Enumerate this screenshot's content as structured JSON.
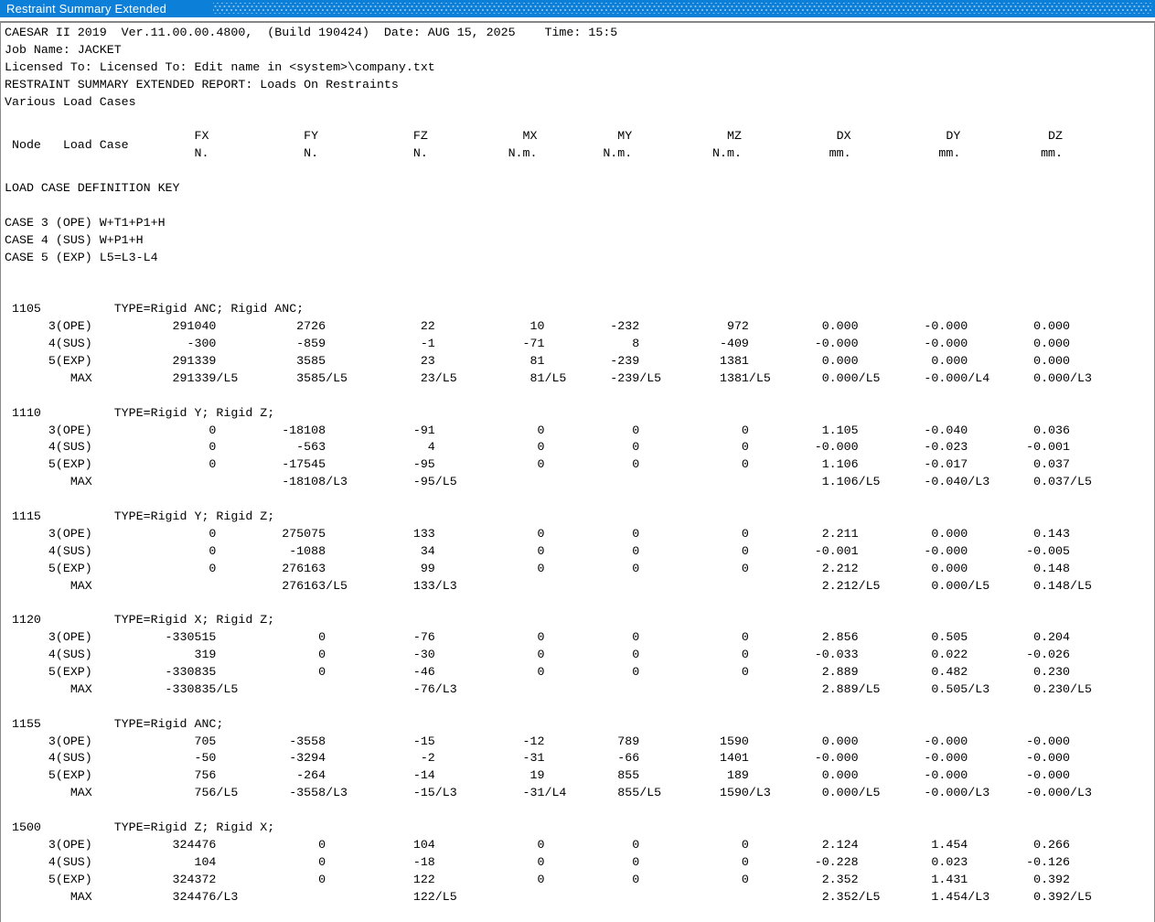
{
  "window": {
    "title": "Restraint Summary Extended",
    "titlebar_color": "#0c80d9"
  },
  "report": {
    "header_lines": [
      "CAESAR II 2019  Ver.11.00.00.4800,  (Build 190424)  Date: AUG 15, 2025    Time: 15:5",
      "Job Name: JACKET",
      "Licensed To: Licensed To: Edit name in <system>\\company.txt",
      "RESTRAINT SUMMARY EXTENDED REPORT: Loads On Restraints",
      "Various Load Cases"
    ],
    "table_header": {
      "node_label": "Node",
      "load_case_label": "Load Case",
      "columns": [
        {
          "label": "FX",
          "unit": "N."
        },
        {
          "label": "FY",
          "unit": "N."
        },
        {
          "label": "FZ",
          "unit": "N."
        },
        {
          "label": "MX",
          "unit": "N.m."
        },
        {
          "label": "MY",
          "unit": "N.m."
        },
        {
          "label": "MZ",
          "unit": "N.m."
        },
        {
          "label": "DX",
          "unit": "mm."
        },
        {
          "label": "DY",
          "unit": "mm."
        },
        {
          "label": "DZ",
          "unit": "mm."
        }
      ]
    },
    "load_case_key": {
      "title": "LOAD CASE DEFINITION KEY",
      "cases": [
        "CASE 3 (OPE) W+T1+P1+H",
        "CASE 4 (SUS) W+P1+H",
        "CASE 5 (EXP) L5=L3-L4"
      ]
    },
    "nodes": [
      {
        "node": "1105",
        "type": "TYPE=Rigid ANC; Rigid ANC;",
        "rows": [
          {
            "case": "3(OPE)",
            "values": [
              "291040",
              "2726",
              "22",
              "10",
              "-232",
              "972",
              "0.000",
              "-0.000",
              "0.000"
            ]
          },
          {
            "case": "4(SUS)",
            "values": [
              "-300",
              "-859",
              "-1",
              "-71",
              "8",
              "-409",
              "-0.000",
              "-0.000",
              "0.000"
            ]
          },
          {
            "case": "5(EXP)",
            "values": [
              "291339",
              "3585",
              "23",
              "81",
              "-239",
              "1381",
              "0.000",
              "0.000",
              "0.000"
            ]
          },
          {
            "case": "MAX",
            "values": [
              "291339/L5",
              "3585/L5",
              "23/L5",
              "81/L5",
              "-239/L5",
              "1381/L5",
              "0.000/L5",
              "-0.000/L4",
              "0.000/L3"
            ]
          }
        ]
      },
      {
        "node": "1110",
        "type": "TYPE=Rigid Y; Rigid Z;",
        "rows": [
          {
            "case": "3(OPE)",
            "values": [
              "0",
              "-18108",
              "-91",
              "0",
              "0",
              "0",
              "1.105",
              "-0.040",
              "0.036"
            ]
          },
          {
            "case": "4(SUS)",
            "values": [
              "0",
              "-563",
              "4",
              "0",
              "0",
              "0",
              "-0.000",
              "-0.023",
              "-0.001"
            ]
          },
          {
            "case": "5(EXP)",
            "values": [
              "0",
              "-17545",
              "-95",
              "0",
              "0",
              "0",
              "1.106",
              "-0.017",
              "0.037"
            ]
          },
          {
            "case": "MAX",
            "values": [
              "",
              "-18108/L3",
              "-95/L5",
              "",
              "",
              "",
              "1.106/L5",
              "-0.040/L3",
              "0.037/L5"
            ]
          }
        ]
      },
      {
        "node": "1115",
        "type": "TYPE=Rigid Y; Rigid Z;",
        "rows": [
          {
            "case": "3(OPE)",
            "values": [
              "0",
              "275075",
              "133",
              "0",
              "0",
              "0",
              "2.211",
              "0.000",
              "0.143"
            ]
          },
          {
            "case": "4(SUS)",
            "values": [
              "0",
              "-1088",
              "34",
              "0",
              "0",
              "0",
              "-0.001",
              "-0.000",
              "-0.005"
            ]
          },
          {
            "case": "5(EXP)",
            "values": [
              "0",
              "276163",
              "99",
              "0",
              "0",
              "0",
              "2.212",
              "0.000",
              "0.148"
            ]
          },
          {
            "case": "MAX",
            "values": [
              "",
              "276163/L5",
              "133/L3",
              "",
              "",
              "",
              "2.212/L5",
              "0.000/L5",
              "0.148/L5"
            ]
          }
        ]
      },
      {
        "node": "1120",
        "type": "TYPE=Rigid X; Rigid Z;",
        "rows": [
          {
            "case": "3(OPE)",
            "values": [
              "-330515",
              "0",
              "-76",
              "0",
              "0",
              "0",
              "2.856",
              "0.505",
              "0.204"
            ]
          },
          {
            "case": "4(SUS)",
            "values": [
              "319",
              "0",
              "-30",
              "0",
              "0",
              "0",
              "-0.033",
              "0.022",
              "-0.026"
            ]
          },
          {
            "case": "5(EXP)",
            "values": [
              "-330835",
              "0",
              "-46",
              "0",
              "0",
              "0",
              "2.889",
              "0.482",
              "0.230"
            ]
          },
          {
            "case": "MAX",
            "values": [
              "-330835/L5",
              "",
              "-76/L3",
              "",
              "",
              "",
              "2.889/L5",
              "0.505/L3",
              "0.230/L5"
            ]
          }
        ]
      },
      {
        "node": "1155",
        "type": "TYPE=Rigid ANC;",
        "rows": [
          {
            "case": "3(OPE)",
            "values": [
              "705",
              "-3558",
              "-15",
              "-12",
              "789",
              "1590",
              "0.000",
              "-0.000",
              "-0.000"
            ]
          },
          {
            "case": "4(SUS)",
            "values": [
              "-50",
              "-3294",
              "-2",
              "-31",
              "-66",
              "1401",
              "-0.000",
              "-0.000",
              "-0.000"
            ]
          },
          {
            "case": "5(EXP)",
            "values": [
              "756",
              "-264",
              "-14",
              "19",
              "855",
              "189",
              "0.000",
              "-0.000",
              "-0.000"
            ]
          },
          {
            "case": "MAX",
            "values": [
              "756/L5",
              "-3558/L3",
              "-15/L3",
              "-31/L4",
              "855/L5",
              "1590/L3",
              "0.000/L5",
              "-0.000/L3",
              "-0.000/L3"
            ]
          }
        ]
      },
      {
        "node": "1500",
        "type": "TYPE=Rigid Z; Rigid X;",
        "rows": [
          {
            "case": "3(OPE)",
            "values": [
              "324476",
              "0",
              "104",
              "0",
              "0",
              "0",
              "2.124",
              "1.454",
              "0.266"
            ]
          },
          {
            "case": "4(SUS)",
            "values": [
              "104",
              "0",
              "-18",
              "0",
              "0",
              "0",
              "-0.228",
              "0.023",
              "-0.126"
            ]
          },
          {
            "case": "5(EXP)",
            "values": [
              "324372",
              "0",
              "122",
              "0",
              "0",
              "0",
              "2.352",
              "1.431",
              "0.392"
            ]
          },
          {
            "case": "MAX",
            "values": [
              "324476/L3",
              "",
              "122/L5",
              "",
              "",
              "",
              "2.352/L5",
              "1.454/L3",
              "0.392/L5"
            ]
          }
        ]
      }
    ]
  }
}
